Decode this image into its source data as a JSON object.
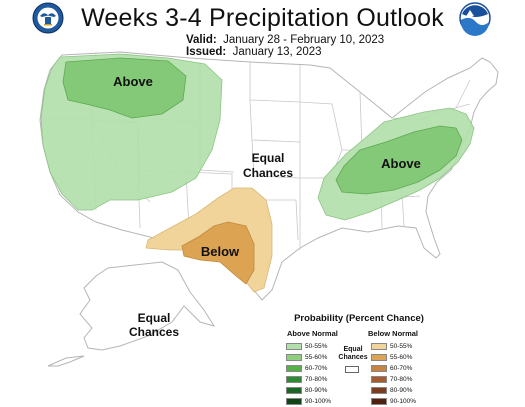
{
  "header": {
    "title": "Weeks 3-4 Precipitation Outlook",
    "valid_label": "Valid:",
    "valid_dates": "January 28 - February 10, 2023",
    "issued_label": "Issued:",
    "issued_date": "January 13, 2023"
  },
  "logos": {
    "left": "doc-seal",
    "right": "noaa-logo"
  },
  "map": {
    "labels": {
      "northwest": "Above",
      "east": "Above",
      "southwest": "Below",
      "center_line1": "Equal",
      "center_line2": "Chances",
      "alaska_line1": "Equal",
      "alaska_line2": "Chances"
    }
  },
  "legend": {
    "title": "Probability (Percent Chance)",
    "above_heading": "Above Normal",
    "below_heading": "Below Normal",
    "equal_line1": "Equal",
    "equal_line2": "Chances",
    "above": [
      {
        "range": "50-55%",
        "color": "#b2dfaa"
      },
      {
        "range": "55-60%",
        "color": "#8dcf7d"
      },
      {
        "range": "60-70%",
        "color": "#55b046"
      },
      {
        "range": "70-80%",
        "color": "#2e8b34"
      },
      {
        "range": "80-90%",
        "color": "#1a6624"
      },
      {
        "range": "90-100%",
        "color": "#0e4417"
      }
    ],
    "below": [
      {
        "range": "50-55%",
        "color": "#f0d49a"
      },
      {
        "range": "55-60%",
        "color": "#dca352"
      },
      {
        "range": "60-70%",
        "color": "#c78342"
      },
      {
        "range": "70-80%",
        "color": "#a65c2e"
      },
      {
        "range": "80-90%",
        "color": "#7e3c1e"
      },
      {
        "range": "90-100%",
        "color": "#4f1f10"
      }
    ]
  }
}
